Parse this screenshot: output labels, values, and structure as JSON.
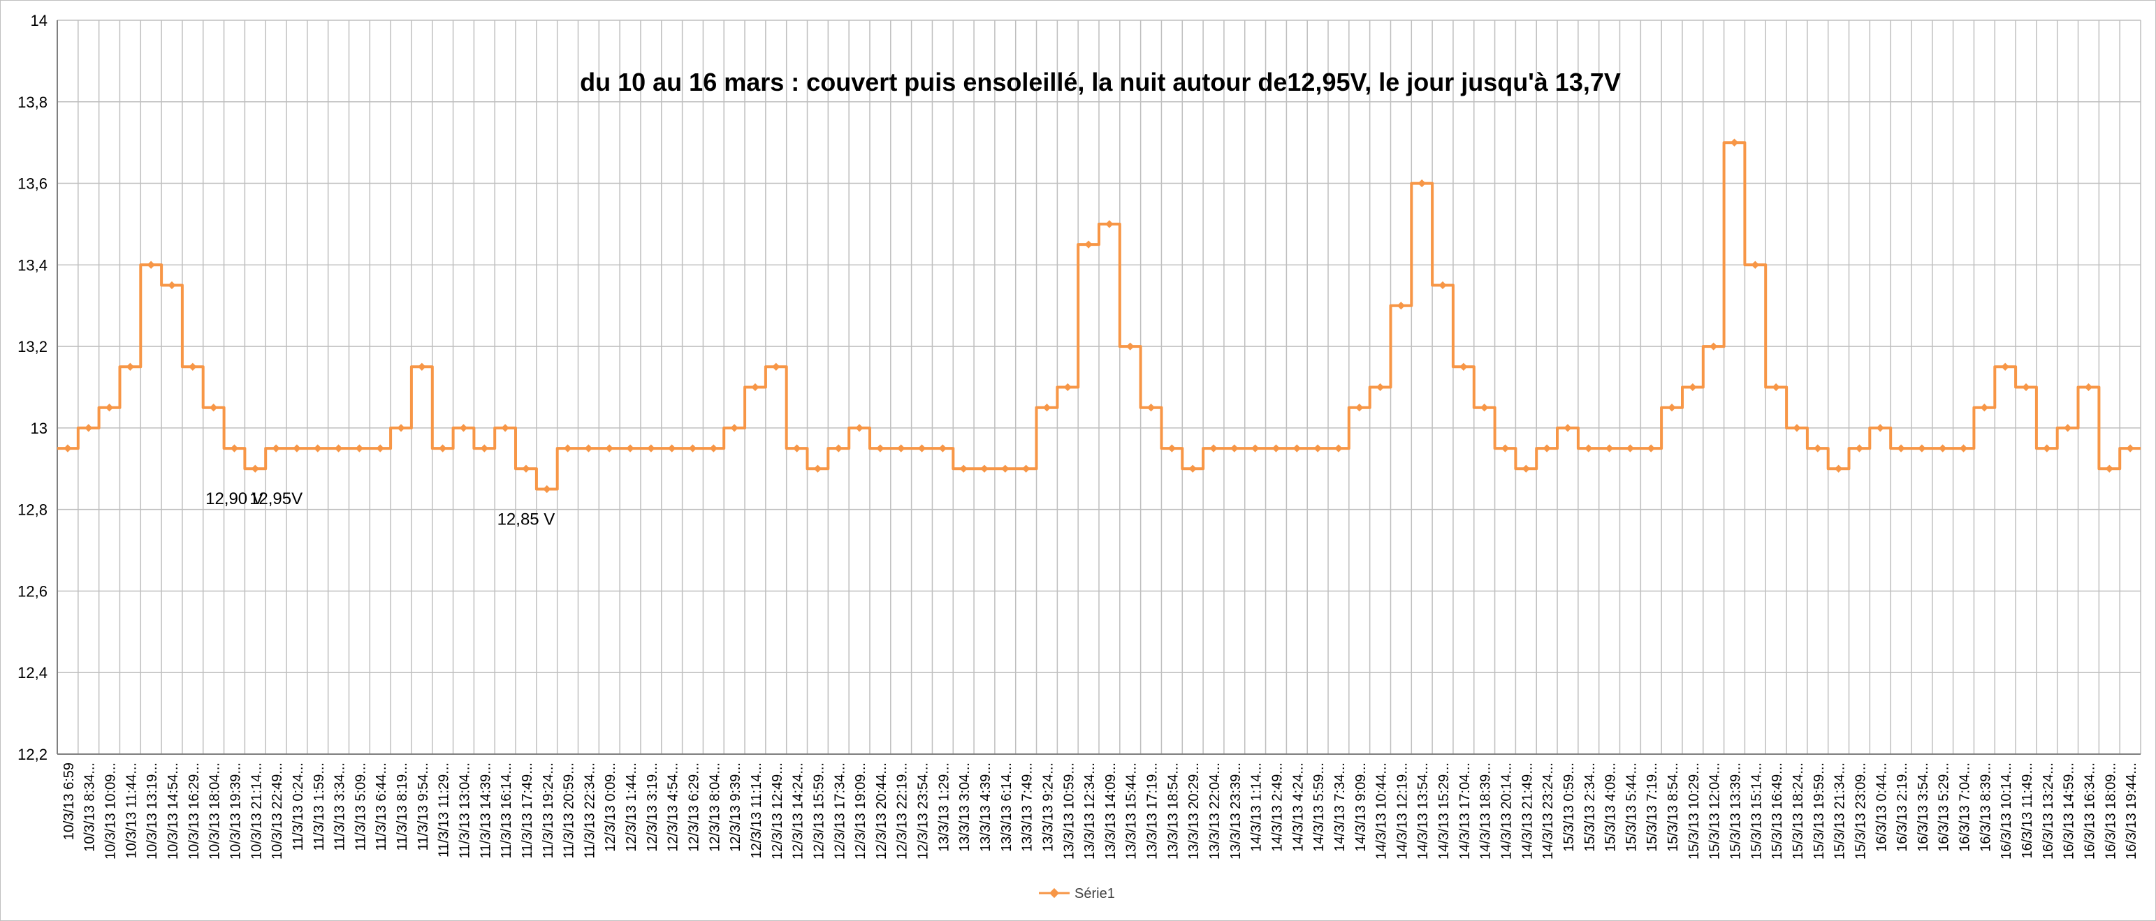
{
  "chart_data": {
    "type": "line",
    "title": "du 10 au 16 mars : couvert puis ensoleillé, la nuit autour de12,95V, le jour jusqu'à 13,7V",
    "xlabel": "",
    "ylabel": "",
    "ylim": [
      12.2,
      14
    ],
    "yticks": [
      "12,2",
      "12,4",
      "12,6",
      "12,8",
      "13",
      "13,2",
      "13,4",
      "13,6",
      "13,8",
      "14"
    ],
    "grid": true,
    "legend_position": "bottom",
    "colors": {
      "series": "#F79646",
      "grid": "#BFBFBF",
      "axis": "#7F7F7F",
      "text": "#000000"
    },
    "categories": [
      "10/3/13 6:59",
      "10/3/13 8:34",
      "10/3/13 10:09",
      "10/3/13 11:44",
      "10/3/13 13:19",
      "10/3/13 14:54",
      "10/3/13 16:29",
      "10/3/13 18:04",
      "10/3/13 19:39",
      "10/3/13 21:14",
      "10/3/13 22:49",
      "11/3/13 0:24",
      "11/3/13 1:59",
      "11/3/13 3:34",
      "11/3/13 5:09",
      "11/3/13 6:44",
      "11/3/13 8:19",
      "11/3/13 9:54",
      "11/3/13 11:29",
      "11/3/13 13:04",
      "11/3/13 14:39",
      "11/3/13 16:14",
      "11/3/13 17:49",
      "11/3/13 19:24",
      "11/3/13 20:59",
      "11/3/13 22:34",
      "12/3/13 0:09",
      "12/3/13 1:44",
      "12/3/13 3:19",
      "12/3/13 4:54",
      "12/3/13 6:29",
      "12/3/13 8:04",
      "12/3/13 9:39",
      "12/3/13 11:14",
      "12/3/13 12:49",
      "12/3/13 14:24",
      "12/3/13 15:59",
      "12/3/13 17:34",
      "12/3/13 19:09",
      "12/3/13 20:44",
      "12/3/13 22:19",
      "12/3/13 23:54",
      "13/3/13 1:29",
      "13/3/13 3:04",
      "13/3/13 4:39",
      "13/3/13 6:14",
      "13/3/13 7:49",
      "13/3/13 9:24",
      "13/3/13 10:59",
      "13/3/13 12:34",
      "13/3/13 14:09",
      "13/3/13 15:44",
      "13/3/13 17:19",
      "13/3/13 18:54",
      "13/3/13 20:29",
      "13/3/13 22:04",
      "13/3/13 23:39",
      "14/3/13 1:14",
      "14/3/13 2:49",
      "14/3/13 4:24",
      "14/3/13 5:59",
      "14/3/13 7:34",
      "14/3/13 9:09",
      "14/3/13 10:44",
      "14/3/13 12:19",
      "14/3/13 13:54",
      "14/3/13 15:29",
      "14/3/13 17:04",
      "14/3/13 18:39",
      "14/3/13 20:14",
      "14/3/13 21:49",
      "14/3/13 23:24",
      "15/3/13 0:59",
      "15/3/13 2:34",
      "15/3/13 4:09",
      "15/3/13 5:44",
      "15/3/13 7:19",
      "15/3/13 8:54",
      "15/3/13 10:29",
      "15/3/13 12:04",
      "15/3/13 13:39",
      "15/3/13 15:14",
      "15/3/13 16:49",
      "15/3/13 18:24",
      "15/3/13 19:59",
      "15/3/13 21:34",
      "15/3/13 23:09",
      "16/3/13 0:44",
      "16/3/13 2:19",
      "16/3/13 3:54",
      "16/3/13 5:29",
      "16/3/13 7:04",
      "16/3/13 8:39",
      "16/3/13 10:14",
      "16/3/13 11:49",
      "16/3/13 13:24",
      "16/3/13 14:59",
      "16/3/13 16:34",
      "16/3/13 18:09",
      "16/3/13 19:44"
    ],
    "x_tick_labels": [
      "10/3/13 6:59",
      "10/3/13 8:34...",
      "10/3/13 10:09...",
      "10/3/13 11:44...",
      "10/3/13 13:19...",
      "10/3/13 14:54...",
      "10/3/13 16:29...",
      "10/3/13 18:04...",
      "10/3/13 19:39...",
      "10/3/13 21:14...",
      "10/3/13 22:49...",
      "11/3/13 0:24...",
      "11/3/13 1:59...",
      "11/3/13 3:34...",
      "11/3/13 5:09...",
      "11/3/13 6:44...",
      "11/3/13 8:19...",
      "11/3/13 9:54...",
      "11/3/13 11:29...",
      "11/3/13 13:04...",
      "11/3/13 14:39...",
      "11/3/13 16:14...",
      "11/3/13 17:49...",
      "11/3/13 19:24...",
      "11/3/13 20:59...",
      "11/3/13 22:34...",
      "12/3/13 0:09...",
      "12/3/13 1:44...",
      "12/3/13 3:19...",
      "12/3/13 4:54...",
      "12/3/13 6:29...",
      "12/3/13 8:04...",
      "12/3/13 9:39...",
      "12/3/13 11:14...",
      "12/3/13 12:49...",
      "12/3/13 14:24...",
      "12/3/13 15:59...",
      "12/3/13 17:34...",
      "12/3/13 19:09...",
      "12/3/13 20:44...",
      "12/3/13 22:19...",
      "12/3/13 23:54...",
      "13/3/13 1:29...",
      "13/3/13 3:04...",
      "13/3/13 4:39...",
      "13/3/13 6:14...",
      "13/3/13 7:49...",
      "13/3/13 9:24...",
      "13/3/13 10:59...",
      "13/3/13 12:34...",
      "13/3/13 14:09...",
      "13/3/13 15:44...",
      "13/3/13 17:19...",
      "13/3/13 18:54...",
      "13/3/13 20:29...",
      "13/3/13 22:04...",
      "13/3/13 23:39...",
      "14/3/13 1:14...",
      "14/3/13 2:49...",
      "14/3/13 4:24...",
      "14/3/13 5:59...",
      "14/3/13 7:34...",
      "14/3/13 9:09...",
      "14/3/13 10:44...",
      "14/3/13 12:19...",
      "14/3/13 13:54...",
      "14/3/13 15:29...",
      "14/3/13 17:04...",
      "14/3/13 18:39...",
      "14/3/13 20:14...",
      "14/3/13 21:49...",
      "14/3/13 23:24...",
      "15/3/13 0:59...",
      "15/3/13 2:34...",
      "15/3/13 4:09...",
      "15/3/13 5:44...",
      "15/3/13 7:19...",
      "15/3/13 8:54...",
      "15/3/13 10:29...",
      "15/3/13 12:04...",
      "15/3/13 13:39...",
      "15/3/13 15:14...",
      "15/3/13 16:49...",
      "15/3/13 18:24...",
      "15/3/13 19:59...",
      "15/3/13 21:34...",
      "15/3/13 23:09...",
      "16/3/13 0:44...",
      "16/3/13 2:19...",
      "16/3/13 3:54...",
      "16/3/13 5:29...",
      "16/3/13 7:04...",
      "16/3/13 8:39...",
      "16/3/13 10:14...",
      "16/3/13 11:49...",
      "16/3/13 13:24...",
      "16/3/13 14:59...",
      "16/3/13 16:34...",
      "16/3/13 18:09...",
      "16/3/13 19:44..."
    ],
    "series": [
      {
        "name": "Série1",
        "values": [
          12.95,
          13.0,
          13.05,
          13.15,
          13.4,
          13.35,
          13.15,
          13.05,
          12.95,
          12.9,
          12.95,
          12.95,
          12.95,
          12.95,
          12.95,
          12.95,
          13.0,
          13.15,
          12.95,
          13.0,
          12.95,
          13.0,
          12.9,
          12.85,
          12.95,
          12.95,
          12.95,
          12.95,
          12.95,
          12.95,
          12.95,
          12.95,
          13.0,
          13.1,
          13.15,
          12.95,
          12.9,
          12.95,
          13.0,
          12.95,
          12.95,
          12.95,
          12.95,
          12.9,
          12.9,
          12.9,
          12.9,
          13.05,
          13.1,
          13.45,
          13.5,
          13.2,
          13.05,
          12.95,
          12.9,
          12.95,
          12.95,
          12.95,
          12.95,
          12.95,
          12.95,
          12.95,
          13.05,
          13.1,
          13.3,
          13.6,
          13.35,
          13.15,
          13.05,
          12.95,
          12.9,
          12.95,
          13.0,
          12.95,
          12.95,
          12.95,
          12.95,
          13.05,
          13.1,
          13.2,
          13.7,
          13.4,
          13.1,
          13.0,
          12.95,
          12.9,
          12.95,
          13.0,
          12.95,
          12.95,
          12.95,
          12.95,
          13.05,
          13.15,
          13.1,
          12.95,
          13.0,
          13.1,
          12.9,
          12.95
        ]
      }
    ],
    "annotations": [
      {
        "text": "12,90 V",
        "category": "10/3/13 19:39"
      },
      {
        "text": "12,95V",
        "category": "10/3/13 22:49"
      },
      {
        "text": "12,85 V",
        "category": "11/3/13 17:49"
      }
    ]
  },
  "legend": {
    "label": "Série1"
  }
}
